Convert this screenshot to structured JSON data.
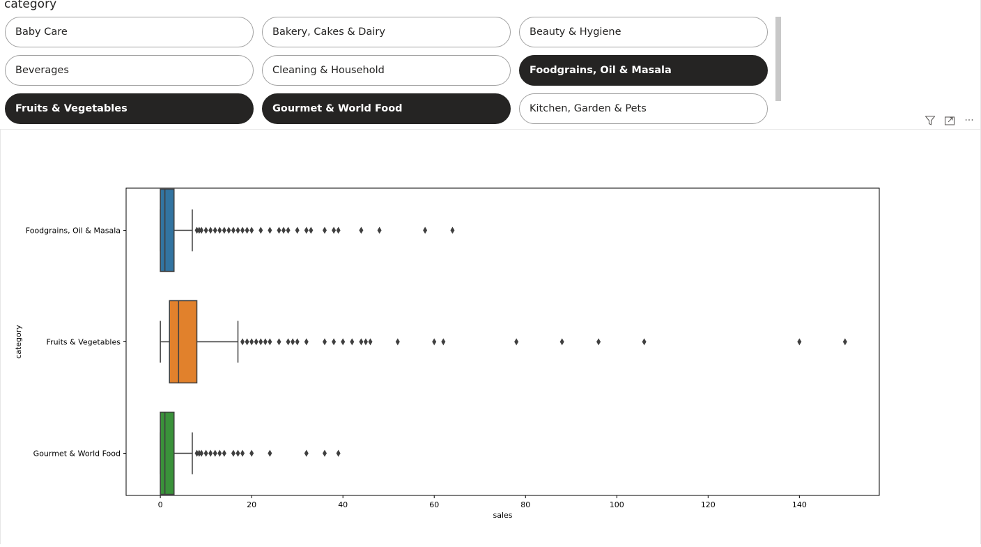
{
  "slicer": {
    "title": "category",
    "items": [
      {
        "label": "Baby Care",
        "selected": false
      },
      {
        "label": "Bakery, Cakes & Dairy",
        "selected": false
      },
      {
        "label": "Beauty & Hygiene",
        "selected": false
      },
      {
        "label": "Beverages",
        "selected": false
      },
      {
        "label": "Cleaning & Household",
        "selected": false
      },
      {
        "label": "Foodgrains, Oil & Masala",
        "selected": true
      },
      {
        "label": "Fruits & Vegetables",
        "selected": true
      },
      {
        "label": "Gourmet & World Food",
        "selected": true
      },
      {
        "label": "Kitchen, Garden & Pets",
        "selected": false
      }
    ]
  },
  "visual_header": {
    "icons": [
      "filter-icon",
      "focus-mode-icon",
      "more-options-icon"
    ],
    "more_label": "···"
  },
  "chart_data": {
    "type": "boxplot",
    "orientation": "horizontal",
    "xlabel": "sales",
    "ylabel": "category",
    "xlim": [
      -7.5,
      157.5
    ],
    "xticks": [
      0,
      20,
      40,
      60,
      80,
      100,
      120,
      140
    ],
    "grid": false,
    "series": [
      {
        "name": "Foodgrains, Oil & Masala",
        "color": "#3274a1",
        "whisker_low": 0,
        "q1": 0,
        "median": 1,
        "q3": 3,
        "whisker_high": 7,
        "outliers": [
          8,
          8.5,
          9,
          10,
          11,
          12,
          13,
          14,
          15,
          16,
          17,
          18,
          19,
          20,
          22,
          24,
          26,
          27,
          28,
          30,
          32,
          33,
          36,
          38,
          39,
          44,
          48,
          58,
          64
        ]
      },
      {
        "name": "Fruits & Vegetables",
        "color": "#e1812c",
        "whisker_low": 0,
        "q1": 2,
        "median": 4,
        "q3": 8,
        "whisker_high": 17,
        "outliers": [
          18,
          19,
          20,
          21,
          22,
          23,
          24,
          26,
          28,
          29,
          30,
          32,
          36,
          38,
          40,
          42,
          44,
          45,
          46,
          52,
          60,
          62,
          78,
          88,
          96,
          106,
          140,
          150
        ]
      },
      {
        "name": "Gourmet & World Food",
        "color": "#3a923a",
        "whisker_low": 0,
        "q1": 0,
        "median": 1,
        "q3": 3,
        "whisker_high": 7,
        "outliers": [
          8,
          8.5,
          9,
          10,
          11,
          12,
          13,
          14,
          16,
          17,
          18,
          20,
          24,
          32,
          36,
          39
        ]
      }
    ]
  }
}
